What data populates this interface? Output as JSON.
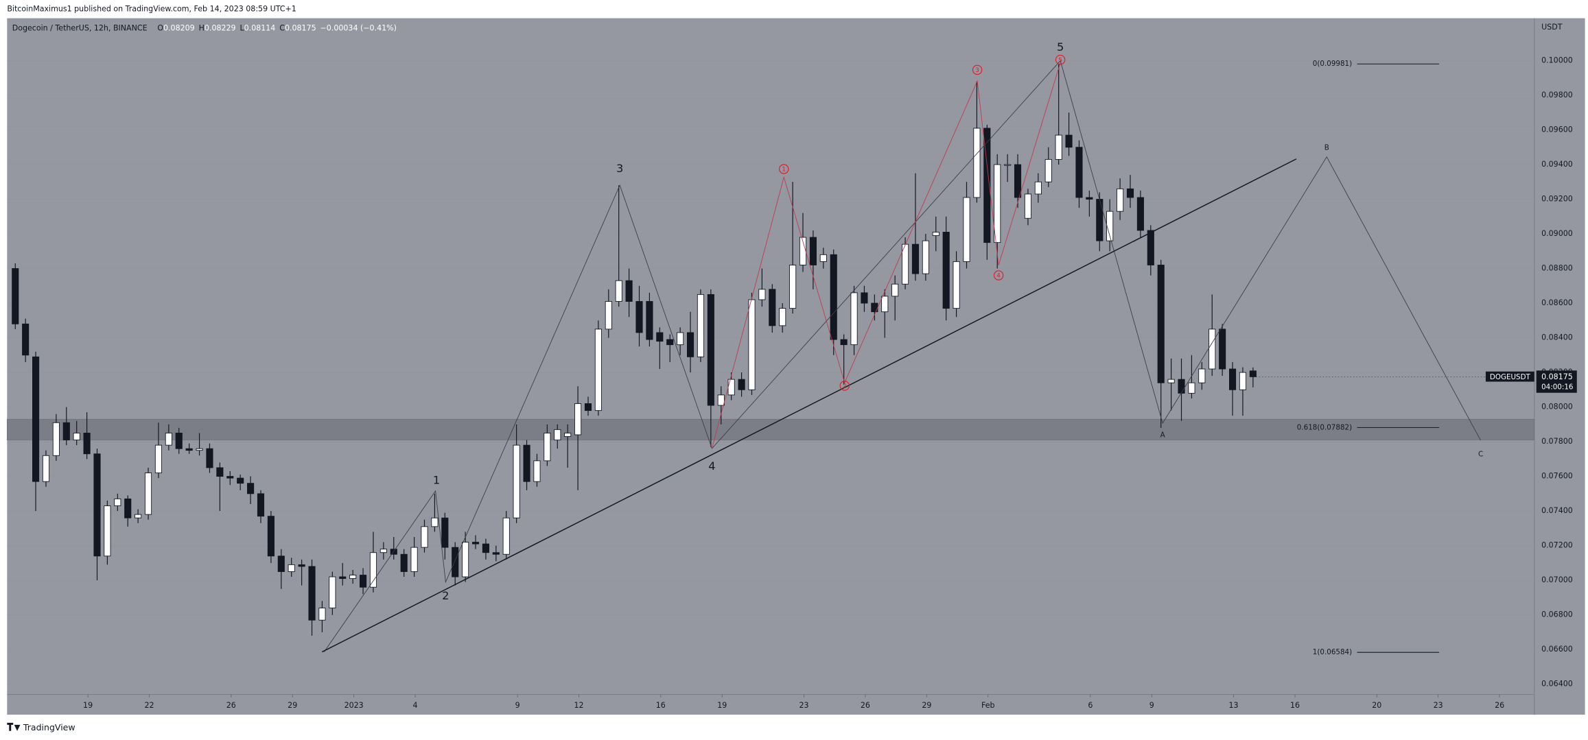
{
  "header": {
    "publisher": "BitcoinMaximus1 published on TradingView.com, Feb 14, 2023 08:59 UTC+1",
    "brand": "TradingView"
  },
  "chart_data": {
    "type": "candlestick",
    "title": "Dogecoin / TetherUS, 12h, BINANCE",
    "legend": [
      {
        "key": "O",
        "value": 0.08209
      },
      {
        "key": "H",
        "value": 0.08229
      },
      {
        "key": "L",
        "value": 0.08114
      },
      {
        "key": "C",
        "value": 0.08175
      }
    ],
    "change": "−0.00034 (−0.41%)",
    "y_unit": "USDT",
    "open": [
      0.088,
      0.0848,
      0.0829,
      0.0757,
      0.0772,
      0.0791,
      0.0781,
      0.0785,
      0.0773,
      0.0714,
      0.0743,
      0.0747,
      0.0736,
      0.0738,
      0.0762,
      0.0778,
      0.0785,
      0.0776,
      0.0775,
      0.0776,
      0.0765,
      0.076,
      0.0759,
      0.0756,
      0.075,
      0.0737,
      0.0714,
      0.0705,
      0.0709,
      0.0708,
      0.0677,
      0.0684,
      0.0702,
      0.0701,
      0.0703,
      0.0696,
      0.0716,
      0.0718,
      0.0715,
      0.0705,
      0.0719,
      0.0731,
      0.0736,
      0.0719,
      0.0702,
      0.0722,
      0.0721,
      0.0716,
      0.0715,
      0.0736,
      0.0778,
      0.0757,
      0.0769,
      0.0781,
      0.0783,
      0.0784,
      0.0802,
      0.0798,
      0.0845,
      0.0861,
      0.0873,
      0.0861,
      0.0861,
      0.0843,
      0.0839,
      0.0836,
      0.0843,
      0.0829,
      0.0865,
      0.0801,
      0.0807,
      0.0816,
      0.081,
      0.0862,
      0.0868,
      0.0847,
      0.0857,
      0.0882,
      0.0898,
      0.0884,
      0.0888,
      0.0839,
      0.0836,
      0.0866,
      0.086,
      0.0855,
      0.0864,
      0.0871,
      0.0894,
      0.0877,
      0.0899,
      0.0901,
      0.0857,
      0.0884,
      0.0921,
      0.0961,
      0.0895,
      0.094,
      0.094,
      0.0909,
      0.0923,
      0.093,
      0.0943,
      0.0957,
      0.095,
      0.0921,
      0.092,
      0.0896,
      0.0913,
      0.0926,
      0.0921,
      0.0902,
      0.0882,
      0.0814,
      0.0816,
      0.0808,
      0.0814,
      0.0822,
      0.0845,
      0.0822,
      0.081,
      0.08209
    ],
    "high": [
      0.0883,
      0.0851,
      0.0832,
      0.0775,
      0.0796,
      0.08,
      0.0792,
      0.0797,
      0.0776,
      0.0746,
      0.075,
      0.0749,
      0.0741,
      0.0765,
      0.0791,
      0.079,
      0.0788,
      0.0779,
      0.0785,
      0.0779,
      0.0768,
      0.0763,
      0.0761,
      0.076,
      0.0752,
      0.074,
      0.0718,
      0.0713,
      0.0712,
      0.0712,
      0.0688,
      0.0705,
      0.071,
      0.0706,
      0.0707,
      0.0728,
      0.0722,
      0.0725,
      0.0718,
      0.0725,
      0.0735,
      0.075,
      0.0739,
      0.0722,
      0.0728,
      0.0726,
      0.0724,
      0.072,
      0.074,
      0.079,
      0.0781,
      0.0773,
      0.079,
      0.079,
      0.079,
      0.0812,
      0.0806,
      0.085,
      0.0868,
      0.0928,
      0.088,
      0.087,
      0.0866,
      0.0846,
      0.0842,
      0.0846,
      0.0855,
      0.0868,
      0.0868,
      0.0812,
      0.082,
      0.082,
      0.0866,
      0.088,
      0.0871,
      0.086,
      0.093,
      0.0912,
      0.0902,
      0.0892,
      0.0891,
      0.0842,
      0.087,
      0.087,
      0.0865,
      0.0868,
      0.0876,
      0.0898,
      0.0935,
      0.09,
      0.091,
      0.091,
      0.089,
      0.093,
      0.0988,
      0.0963,
      0.0946,
      0.0946,
      0.0946,
      0.0926,
      0.0935,
      0.095,
      0.0998,
      0.097,
      0.0954,
      0.0925,
      0.0924,
      0.092,
      0.0932,
      0.0934,
      0.0925,
      0.0905,
      0.0885,
      0.0828,
      0.0828,
      0.083,
      0.0826,
      0.0865,
      0.0848,
      0.0826,
      0.0823,
      0.08229
    ],
    "low": [
      0.0845,
      0.0826,
      0.074,
      0.0754,
      0.0769,
      0.0778,
      0.0778,
      0.077,
      0.07,
      0.0709,
      0.074,
      0.0731,
      0.0733,
      0.0735,
      0.0759,
      0.0775,
      0.0773,
      0.0773,
      0.0772,
      0.0762,
      0.074,
      0.0755,
      0.0752,
      0.0744,
      0.0733,
      0.071,
      0.0695,
      0.0702,
      0.0697,
      0.0668,
      0.067,
      0.068,
      0.0697,
      0.0698,
      0.0692,
      0.0693,
      0.0712,
      0.0712,
      0.0702,
      0.0702,
      0.0716,
      0.0728,
      0.0712,
      0.0697,
      0.0699,
      0.0718,
      0.0712,
      0.0711,
      0.0712,
      0.0733,
      0.0752,
      0.0754,
      0.0766,
      0.0776,
      0.0765,
      0.0752,
      0.0795,
      0.0795,
      0.084,
      0.0858,
      0.0852,
      0.0835,
      0.0835,
      0.0822,
      0.0826,
      0.083,
      0.082,
      0.0826,
      0.0777,
      0.079,
      0.0804,
      0.0806,
      0.0807,
      0.0858,
      0.0843,
      0.0843,
      0.0854,
      0.0878,
      0.0868,
      0.088,
      0.083,
      0.0813,
      0.083,
      0.0855,
      0.085,
      0.084,
      0.085,
      0.0868,
      0.0873,
      0.0873,
      0.089,
      0.085,
      0.0852,
      0.088,
      0.0918,
      0.0885,
      0.088,
      0.093,
      0.0915,
      0.0905,
      0.0918,
      0.0927,
      0.094,
      0.0945,
      0.0915,
      0.091,
      0.089,
      0.089,
      0.0908,
      0.0915,
      0.0898,
      0.0876,
      0.0788,
      0.0798,
      0.0792,
      0.0805,
      0.081,
      0.0818,
      0.0818,
      0.0795,
      0.0795,
      0.08114
    ],
    "close": [
      0.0848,
      0.083,
      0.0757,
      0.0772,
      0.0791,
      0.0781,
      0.0785,
      0.0773,
      0.0714,
      0.0743,
      0.0747,
      0.0736,
      0.0738,
      0.0762,
      0.0778,
      0.0785,
      0.0776,
      0.0775,
      0.0776,
      0.0765,
      0.076,
      0.0759,
      0.0756,
      0.075,
      0.0737,
      0.0714,
      0.0705,
      0.0709,
      0.0708,
      0.0677,
      0.0684,
      0.0702,
      0.0701,
      0.0703,
      0.0696,
      0.0716,
      0.0718,
      0.0715,
      0.0705,
      0.0719,
      0.0731,
      0.0736,
      0.0719,
      0.0702,
      0.0722,
      0.0721,
      0.0716,
      0.0715,
      0.0736,
      0.0778,
      0.0757,
      0.0769,
      0.0785,
      0.0787,
      0.0785,
      0.0802,
      0.0798,
      0.0845,
      0.0861,
      0.0873,
      0.0861,
      0.0843,
      0.0839,
      0.0838,
      0.0836,
      0.0843,
      0.0829,
      0.0865,
      0.0801,
      0.0807,
      0.0816,
      0.081,
      0.0862,
      0.0868,
      0.0847,
      0.0857,
      0.0882,
      0.0898,
      0.0882,
      0.0888,
      0.0839,
      0.0836,
      0.0866,
      0.086,
      0.0855,
      0.0864,
      0.0871,
      0.0894,
      0.0877,
      0.0896,
      0.0901,
      0.0857,
      0.0884,
      0.0921,
      0.0961,
      0.0895,
      0.094,
      0.094,
      0.0921,
      0.0923,
      0.093,
      0.0943,
      0.0957,
      0.095,
      0.0921,
      0.092,
      0.0896,
      0.0913,
      0.0926,
      0.0921,
      0.0902,
      0.0882,
      0.0814,
      0.0816,
      0.0808,
      0.0814,
      0.0822,
      0.0845,
      0.0822,
      0.081,
      0.082,
      0.08175
    ],
    "up_color": "#ffffff",
    "down_color": "#131722",
    "background": "#9598a1",
    "xlim": [
      -0.8,
      148.5
    ],
    "xticks": [
      {
        "value": 7.1,
        "label": "19"
      },
      {
        "value": 13.1,
        "label": "22"
      },
      {
        "value": 21.1,
        "label": "26"
      },
      {
        "value": 27.1,
        "label": "29"
      },
      {
        "value": 33.1,
        "label": "2023"
      },
      {
        "value": 39.1,
        "label": "4"
      },
      {
        "value": 49.1,
        "label": "9"
      },
      {
        "value": 55.1,
        "label": "12"
      },
      {
        "value": 63.1,
        "label": "16"
      },
      {
        "value": 69.1,
        "label": "19"
      },
      {
        "value": 77.1,
        "label": "23"
      },
      {
        "value": 83.1,
        "label": "26"
      },
      {
        "value": 89.1,
        "label": "29"
      },
      {
        "value": 95.1,
        "label": "Feb"
      },
      {
        "value": 105.1,
        "label": "6"
      },
      {
        "value": 111.1,
        "label": "9"
      },
      {
        "value": 119.1,
        "label": "13"
      },
      {
        "value": 125.1,
        "label": "16"
      },
      {
        "value": 133.1,
        "label": "20"
      },
      {
        "value": 139.1,
        "label": "23"
      },
      {
        "value": 145.1,
        "label": "26"
      }
    ],
    "ylim": [
      0.06224,
      0.10245
    ],
    "yticks": [
      {
        "value": 0.064,
        "label": "0.06400"
      },
      {
        "value": 0.066,
        "label": "0.06600"
      },
      {
        "value": 0.068,
        "label": "0.06800"
      },
      {
        "value": 0.07,
        "label": "0.07000"
      },
      {
        "value": 0.072,
        "label": "0.07200"
      },
      {
        "value": 0.074,
        "label": "0.07400"
      },
      {
        "value": 0.076,
        "label": "0.07600"
      },
      {
        "value": 0.078,
        "label": "0.07800"
      },
      {
        "value": 0.08,
        "label": "0.08000"
      },
      {
        "value": 0.082,
        "label": "0.08200"
      },
      {
        "value": 0.084,
        "label": "0.08400"
      },
      {
        "value": 0.086,
        "label": "0.08600"
      },
      {
        "value": 0.088,
        "label": "0.08800"
      },
      {
        "value": 0.09,
        "label": "0.09000"
      },
      {
        "value": 0.092,
        "label": "0.09200"
      },
      {
        "value": 0.094,
        "label": "0.09400"
      },
      {
        "value": 0.096,
        "label": "0.09600"
      },
      {
        "value": 0.098,
        "label": "0.09800"
      },
      {
        "value": 0.1,
        "label": "0.10000"
      }
    ],
    "last_price": {
      "symbol": "DOGEUSDT",
      "value": 0.08175,
      "countdown": "04:00:16"
    },
    "fib_levels": [
      {
        "label": "0(0.09981)",
        "value": 0.09981
      },
      {
        "label": "0.618(0.07882)",
        "value": 0.07882
      },
      {
        "label": "1(0.06584)",
        "value": 0.06584
      }
    ],
    "zone": [
      0.0781,
      0.0793
    ],
    "wave_labels": [
      "1",
      "2",
      "3",
      "4",
      "5",
      "A",
      "B",
      "C"
    ],
    "sub_wave_labels": [
      "1",
      "2",
      "3",
      "4",
      "5"
    ]
  }
}
